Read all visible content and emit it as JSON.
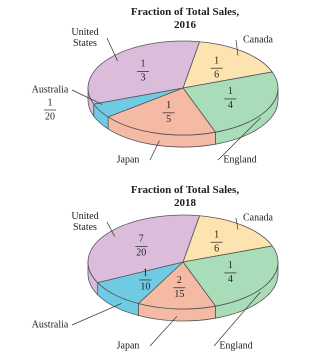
{
  "chart_data": [
    {
      "type": "pie",
      "title": "Fraction of Total Sales, 2016",
      "categories": [
        "Canada",
        "England",
        "Japan",
        "Australia",
        "United States"
      ],
      "values": [
        0.1667,
        0.25,
        0.2,
        0.05,
        0.3333
      ],
      "value_labels": [
        [
          "1",
          "6"
        ],
        [
          "1",
          "4"
        ],
        [
          "1",
          "5"
        ],
        [
          "1",
          "20"
        ],
        [
          "1",
          "3"
        ]
      ],
      "colors": [
        "#fde3b0",
        "#a9dcb9",
        "#f5baa3",
        "#6fcbe4",
        "#dcbcdb"
      ]
    },
    {
      "type": "pie",
      "title": "Fraction of Total Sales, 2018",
      "categories": [
        "Canada",
        "England",
        "Japan",
        "Australia",
        "United States"
      ],
      "values": [
        0.1667,
        0.25,
        0.1333,
        0.1,
        0.35
      ],
      "value_labels": [
        [
          "1",
          "6"
        ],
        [
          "1",
          "4"
        ],
        [
          "2",
          "15"
        ],
        [
          "1",
          "10"
        ],
        [
          "7",
          "20"
        ]
      ],
      "colors": [
        "#fde3b0",
        "#a9dcb9",
        "#f5baa3",
        "#6fcbe4",
        "#dcbcdb"
      ]
    }
  ]
}
